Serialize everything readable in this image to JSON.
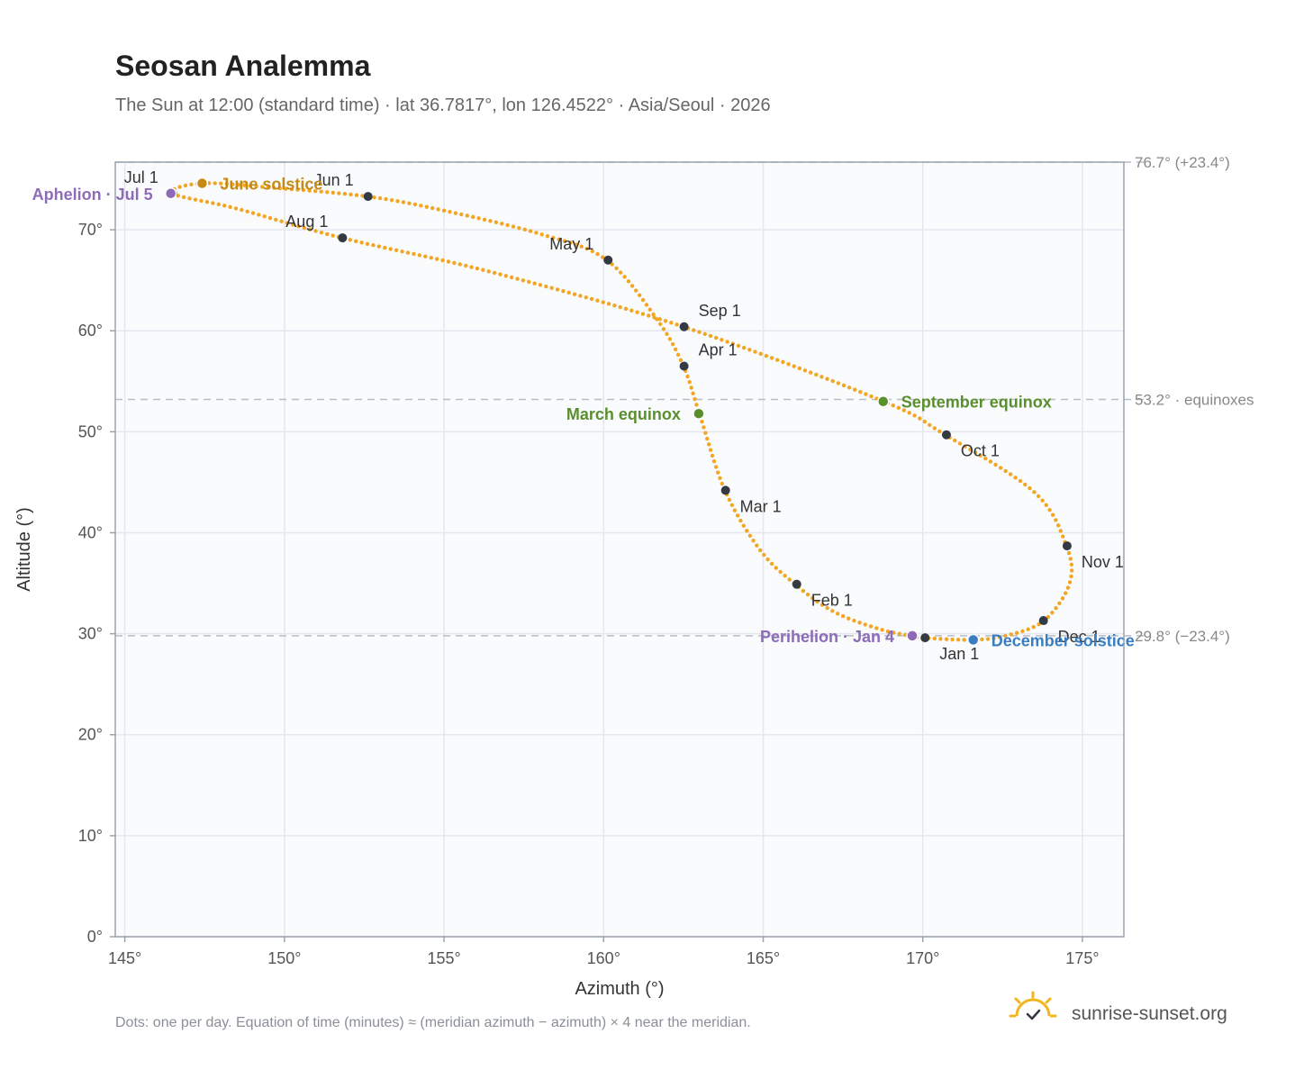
{
  "header": {
    "title": "Seosan Analemma",
    "subtitle": "The Sun at 12:00 (standard time) · lat 36.7817°, lon 126.4522° · Asia/Seoul · 2026"
  },
  "footer": {
    "note": "Dots: one per day. Equation of time (minutes) ≈ (meridian azimuth − azimuth) × 4 near the meridian.",
    "brand": "sunrise-sunset.org"
  },
  "colors": {
    "curve": "#f2a623",
    "month_dot": "#333a44",
    "equinox": "#5a8f2e",
    "solstice_june": "#c58a14",
    "solstice_december": "#3a7ec1",
    "apsis": "#8e6bb8",
    "grid": "#e4e8ee",
    "frame": "#9aa3ae",
    "plot_bg": "#f9fbfd",
    "ref_line": "#b7bec8"
  },
  "chart_data": {
    "type": "scatter",
    "xlabel": "Azimuth (°)",
    "ylabel": "Altitude (°)",
    "xlim": [
      144.7,
      176.3
    ],
    "ylim": [
      0,
      76.7
    ],
    "xticks": [
      {
        "value": 145,
        "label": "145°"
      },
      {
        "value": 150,
        "label": "150°"
      },
      {
        "value": 155,
        "label": "155°"
      },
      {
        "value": 160,
        "label": "160°"
      },
      {
        "value": 165,
        "label": "165°"
      },
      {
        "value": 170,
        "label": "170°"
      },
      {
        "value": 175,
        "label": "175°"
      }
    ],
    "yticks": [
      {
        "value": 0,
        "label": "0°"
      },
      {
        "value": 10,
        "label": "10°"
      },
      {
        "value": 20,
        "label": "20°"
      },
      {
        "value": 30,
        "label": "30°"
      },
      {
        "value": 40,
        "label": "40°"
      },
      {
        "value": 50,
        "label": "50°"
      },
      {
        "value": 60,
        "label": "60°"
      },
      {
        "value": 70,
        "label": "70°"
      }
    ],
    "grid": true,
    "reference_lines": [
      {
        "y": 76.7,
        "label": "76.7° (+23.4°)"
      },
      {
        "y": 53.2,
        "label": "53.2° · equinoxes"
      },
      {
        "y": 29.8,
        "label": "29.8° (−23.4°)"
      }
    ],
    "analemma_path": [
      [
        170.0,
        29.6
      ],
      [
        169.6,
        29.8
      ],
      [
        168.6,
        30.5
      ],
      [
        167.2,
        32.2
      ],
      [
        166.0,
        34.9
      ],
      [
        164.9,
        38.3
      ],
      [
        163.8,
        44.2
      ],
      [
        163.0,
        51.8
      ],
      [
        162.5,
        56.5
      ],
      [
        161.7,
        61.0
      ],
      [
        160.1,
        67.0
      ],
      [
        158.0,
        69.6
      ],
      [
        155.0,
        71.9
      ],
      [
        152.6,
        73.3
      ],
      [
        149.5,
        74.2
      ],
      [
        147.4,
        74.6
      ],
      [
        146.5,
        73.6
      ],
      [
        148.5,
        72.1
      ],
      [
        151.8,
        69.2
      ],
      [
        156.5,
        65.8
      ],
      [
        162.5,
        60.4
      ],
      [
        168.7,
        53.1
      ],
      [
        170.7,
        49.7
      ],
      [
        173.5,
        44.0
      ],
      [
        174.5,
        38.7
      ],
      [
        174.6,
        35.0
      ],
      [
        173.8,
        31.3
      ],
      [
        172.6,
        29.8
      ],
      [
        171.5,
        29.4
      ],
      [
        170.0,
        29.6
      ]
    ],
    "months": [
      {
        "label": "Jan 1",
        "x": 170.07,
        "y": 29.6,
        "anchor": "below-right"
      },
      {
        "label": "Feb 1",
        "x": 166.05,
        "y": 34.9,
        "anchor": "below-right"
      },
      {
        "label": "Mar 1",
        "x": 163.82,
        "y": 44.2,
        "anchor": "below-right"
      },
      {
        "label": "Apr 1",
        "x": 162.52,
        "y": 56.5,
        "anchor": "above-right"
      },
      {
        "label": "May 1",
        "x": 160.14,
        "y": 67.0,
        "anchor": "above-left"
      },
      {
        "label": "Jun 1",
        "x": 152.62,
        "y": 73.3,
        "anchor": "above-left"
      },
      {
        "label": "Jul 1",
        "x": 146.5,
        "y": 73.6,
        "anchor": "above-left"
      },
      {
        "label": "Aug 1",
        "x": 151.82,
        "y": 69.2,
        "anchor": "above-left"
      },
      {
        "label": "Sep 1",
        "x": 162.52,
        "y": 60.4,
        "anchor": "above-right"
      },
      {
        "label": "Oct 1",
        "x": 170.74,
        "y": 49.7,
        "anchor": "below-right"
      },
      {
        "label": "Nov 1",
        "x": 174.52,
        "y": 38.7,
        "anchor": "below-right"
      },
      {
        "label": "Dec 1",
        "x": 173.78,
        "y": 31.3,
        "anchor": "below-right"
      }
    ],
    "events": [
      {
        "label": "June solstice",
        "x": 147.42,
        "y": 74.6,
        "color": "#c58a14",
        "side": "right"
      },
      {
        "label": "Aphelion · Jul 5",
        "x": 146.44,
        "y": 73.6,
        "color": "#8e6bb8",
        "side": "left"
      },
      {
        "label": "March equinox",
        "x": 162.98,
        "y": 51.8,
        "color": "#5a8f2e",
        "side": "left"
      },
      {
        "label": "September equinox",
        "x": 168.76,
        "y": 53.0,
        "color": "#5a8f2e",
        "side": "right"
      },
      {
        "label": "Perihelion · Jan 4",
        "x": 169.67,
        "y": 29.8,
        "color": "#8e6bb8",
        "side": "left"
      },
      {
        "label": "December solstice",
        "x": 171.58,
        "y": 29.4,
        "color": "#3a7ec1",
        "side": "right"
      }
    ]
  }
}
